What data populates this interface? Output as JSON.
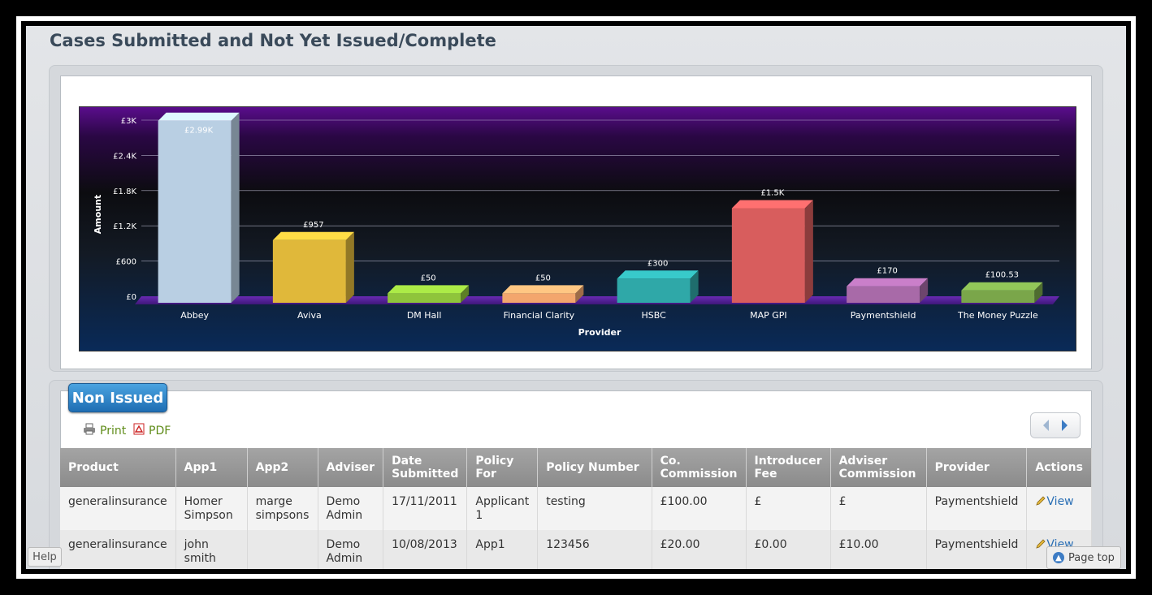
{
  "page": {
    "title": "Cases Submitted and Not Yet Issued/Complete"
  },
  "chart_data": {
    "type": "bar",
    "categories": [
      "Abbey",
      "Aviva",
      "DM Hall",
      "Financial Clarity",
      "HSBC",
      "MAP GPI",
      "Paymentshield",
      "The Money Puzzle"
    ],
    "values": [
      2990,
      957,
      50,
      50,
      300,
      1500,
      170,
      100.53
    ],
    "value_labels": [
      "£2.99K",
      "£957",
      "£50",
      "£50",
      "£300",
      "£1.5K",
      "£170",
      "£100.53"
    ],
    "colors": [
      "#b9cfe3",
      "#e0b83a",
      "#8fc43b",
      "#f3a66d",
      "#2fa8a8",
      "#d85d5d",
      "#a86aa8",
      "#7aa64a"
    ],
    "xlabel": "Provider",
    "ylabel": "Amount",
    "ylim": [
      0,
      3000
    ],
    "yticks": [
      "£0",
      "£600",
      "£1.2K",
      "£1.8K",
      "£2.4K",
      "£3K"
    ],
    "grid": true
  },
  "table": {
    "tab_label": "Non Issued",
    "print_label": "Print",
    "pdf_label": "PDF",
    "headers": [
      "Product",
      "App1",
      "App2",
      "Adviser",
      "Date Submitted",
      "Policy For",
      "Policy Number",
      "Co. Commission",
      "Introducer Fee",
      "Adviser Commission",
      "Provider",
      "Actions"
    ],
    "rows": [
      [
        "generalinsurance",
        "Homer Simpson",
        "marge simpsons",
        "Demo Admin",
        "17/11/2011",
        "Applicant 1",
        "testing",
        "£100.00",
        "£",
        "£",
        "Paymentshield",
        "View"
      ],
      [
        "generalinsurance",
        "john smith",
        "",
        "Demo Admin",
        "10/08/2013",
        "App1",
        "123456",
        "£20.00",
        "£0.00",
        "£10.00",
        "Paymentshield",
        "View"
      ]
    ]
  },
  "footer": {
    "help_label": "Help",
    "page_top_label": "Page top"
  }
}
